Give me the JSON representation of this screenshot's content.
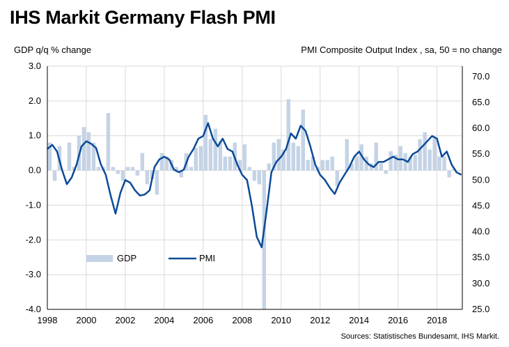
{
  "title": "IHS Markit Germany Flash PMI",
  "chart_data": {
    "type": "bar+line",
    "left_axis_title": "GDP q/q % change",
    "right_axis_title": "PMI Composite Output Index , sa, 50 = no change",
    "source": "Sources: Statistisches Bundesamt, IHS Markit.",
    "left_ylim": [
      -4.0,
      3.0
    ],
    "right_ylim": [
      25.0,
      72.0
    ],
    "left_ticks": [
      "3.0",
      "2.0",
      "1.0",
      "0.0",
      "-1.0",
      "-2.0",
      "-3.0",
      "-4.0"
    ],
    "right_ticks": [
      "70.0",
      "65.0",
      "60.0",
      "55.0",
      "50.0",
      "45.0",
      "40.0",
      "35.0",
      "30.0",
      "25.0"
    ],
    "x_ticks": [
      "1998",
      "2000",
      "2002",
      "2004",
      "2006",
      "2008",
      "2010",
      "2012",
      "2014",
      "2016",
      "2018"
    ],
    "xlim": [
      1998.0,
      2019.3
    ],
    "grid": true,
    "legend": {
      "position": "inside-lower-left",
      "entries": [
        "GDP",
        "PMI"
      ]
    },
    "colors": {
      "gdp": "#c5d3e6",
      "pmi": "#0a4a97",
      "grid": "#d9d9d9"
    },
    "series": [
      {
        "name": "GDP",
        "type": "bar",
        "axis": "left",
        "x": [
          1998.0,
          1998.25,
          1998.5,
          1998.75,
          1999.0,
          1999.25,
          1999.5,
          1999.75,
          2000.0,
          2000.25,
          2000.5,
          2000.75,
          2001.0,
          2001.25,
          2001.5,
          2001.75,
          2002.0,
          2002.25,
          2002.5,
          2002.75,
          2003.0,
          2003.25,
          2003.5,
          2003.75,
          2004.0,
          2004.25,
          2004.5,
          2004.75,
          2005.0,
          2005.25,
          2005.5,
          2005.75,
          2006.0,
          2006.25,
          2006.5,
          2006.75,
          2007.0,
          2007.25,
          2007.5,
          2007.75,
          2008.0,
          2008.25,
          2008.5,
          2008.75,
          2009.0,
          2009.25,
          2009.5,
          2009.75,
          2010.0,
          2010.25,
          2010.5,
          2010.75,
          2011.0,
          2011.25,
          2011.5,
          2011.75,
          2012.0,
          2012.25,
          2012.5,
          2012.75,
          2013.0,
          2013.25,
          2013.5,
          2013.75,
          2014.0,
          2014.25,
          2014.5,
          2014.75,
          2015.0,
          2015.25,
          2015.5,
          2015.75,
          2016.0,
          2016.25,
          2016.5,
          2016.75,
          2017.0,
          2017.25,
          2017.5,
          2017.75,
          2018.0,
          2018.25,
          2018.5,
          2018.75
        ],
        "values": [
          0.8,
          -0.3,
          0.7,
          0.0,
          0.8,
          0.1,
          1.0,
          1.25,
          1.1,
          0.8,
          0.1,
          0.1,
          1.65,
          0.1,
          -0.1,
          -0.3,
          0.1,
          0.1,
          -0.15,
          0.5,
          -0.4,
          -0.25,
          -0.7,
          0.5,
          0.4,
          0.3,
          0.1,
          -0.2,
          0.5,
          0.1,
          0.65,
          0.7,
          1.6,
          0.9,
          1.2,
          0.85,
          0.4,
          0.4,
          0.8,
          0.3,
          0.75,
          0.1,
          -0.3,
          -0.4,
          -4.0,
          0.2,
          0.8,
          0.9,
          0.6,
          2.05,
          0.8,
          0.7,
          1.75,
          0.3,
          0.4,
          0.1,
          0.3,
          0.3,
          0.4,
          -0.45,
          0.0,
          0.9,
          0.2,
          0.4,
          0.75,
          0.4,
          0.2,
          0.8,
          0.2,
          -0.1,
          0.55,
          0.45,
          0.7,
          0.5,
          0.4,
          0.45,
          0.9,
          1.1,
          0.6,
          0.95,
          0.4,
          0.4,
          -0.2,
          0.05
        ]
      },
      {
        "name": "PMI",
        "type": "line",
        "axis": "right",
        "x": [
          1998.0,
          1998.25,
          1998.5,
          1998.75,
          1999.0,
          1999.25,
          1999.5,
          1999.75,
          2000.0,
          2000.25,
          2000.5,
          2000.75,
          2001.0,
          2001.25,
          2001.5,
          2001.75,
          2002.0,
          2002.25,
          2002.5,
          2002.75,
          2003.0,
          2003.25,
          2003.5,
          2003.75,
          2004.0,
          2004.25,
          2004.5,
          2004.75,
          2005.0,
          2005.25,
          2005.5,
          2005.75,
          2006.0,
          2006.25,
          2006.5,
          2006.75,
          2007.0,
          2007.25,
          2007.5,
          2007.75,
          2008.0,
          2008.25,
          2008.5,
          2008.75,
          2009.0,
          2009.25,
          2009.5,
          2009.75,
          2010.0,
          2010.25,
          2010.5,
          2010.75,
          2011.0,
          2011.25,
          2011.5,
          2011.75,
          2012.0,
          2012.25,
          2012.5,
          2012.75,
          2013.0,
          2013.25,
          2013.5,
          2013.75,
          2014.0,
          2014.25,
          2014.5,
          2014.75,
          2015.0,
          2015.25,
          2015.5,
          2015.75,
          2016.0,
          2016.25,
          2016.5,
          2016.75,
          2017.0,
          2017.25,
          2017.5,
          2017.75,
          2018.0,
          2018.25,
          2018.5,
          2018.75,
          2019.0,
          2019.25
        ],
        "values": [
          56.0,
          56.8,
          55.5,
          52.0,
          49.2,
          50.5,
          53.0,
          56.5,
          57.5,
          57.0,
          56.2,
          53.0,
          51.0,
          47.0,
          43.5,
          47.5,
          50.0,
          49.5,
          48.0,
          47.0,
          47.2,
          48.0,
          52.5,
          54.0,
          54.5,
          54.0,
          52.0,
          51.5,
          52.0,
          54.5,
          56.0,
          58.0,
          58.5,
          61.0,
          58.0,
          56.5,
          58.0,
          56.0,
          55.5,
          53.0,
          51.0,
          50.0,
          45.0,
          39.0,
          37.0,
          44.0,
          51.5,
          53.5,
          54.5,
          56.0,
          59.0,
          58.0,
          60.5,
          59.5,
          56.5,
          53.0,
          51.0,
          50.0,
          48.5,
          47.3,
          49.5,
          51.0,
          52.5,
          54.5,
          55.5,
          54.0,
          53.0,
          52.5,
          53.5,
          53.5,
          54.0,
          54.5,
          54.0,
          54.0,
          53.5,
          55.0,
          55.5,
          56.5,
          57.5,
          58.5,
          58.0,
          54.5,
          55.5,
          53.0,
          51.5,
          51.0
        ]
      }
    ]
  }
}
